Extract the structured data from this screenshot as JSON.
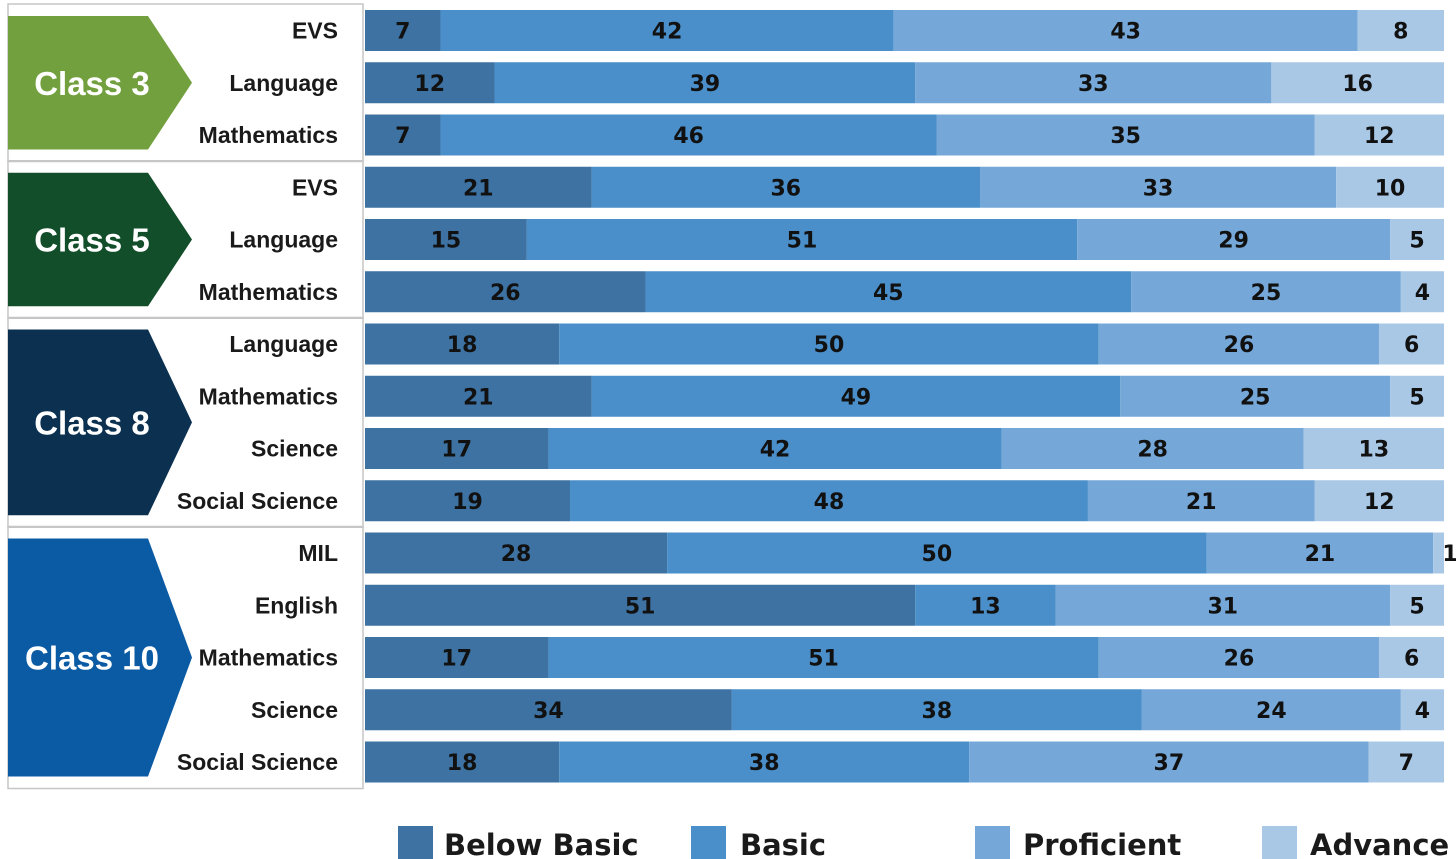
{
  "chart_data": {
    "type": "bar",
    "orientation": "horizontal",
    "stacked": true,
    "xlim": [
      0,
      100
    ],
    "series": [
      {
        "name": "Below Basic",
        "color": "#3d72a2"
      },
      {
        "name": "Basic",
        "color": "#4a8fc9"
      },
      {
        "name": "Proficient",
        "color": "#75a8d8"
      },
      {
        "name": "Advance",
        "color": "#a9c8e6"
      }
    ],
    "groups": [
      {
        "label": "Class 3",
        "color": "#73a03f",
        "rows": [
          {
            "subject": "EVS",
            "values": [
              7,
              42,
              43,
              8
            ]
          },
          {
            "subject": "Language",
            "values": [
              12,
              39,
              33,
              16
            ]
          },
          {
            "subject": "Mathematics",
            "values": [
              7,
              46,
              35,
              12
            ]
          }
        ]
      },
      {
        "label": "Class 5",
        "color": "#134e2a",
        "rows": [
          {
            "subject": "EVS",
            "values": [
              21,
              36,
              33,
              10
            ]
          },
          {
            "subject": "Language",
            "values": [
              15,
              51,
              29,
              5
            ]
          },
          {
            "subject": "Mathematics",
            "values": [
              26,
              45,
              25,
              4
            ]
          }
        ]
      },
      {
        "label": "Class 8",
        "color": "#0b3050",
        "rows": [
          {
            "subject": "Language",
            "values": [
              18,
              50,
              26,
              6
            ]
          },
          {
            "subject": "Mathematics",
            "values": [
              21,
              49,
              25,
              5
            ]
          },
          {
            "subject": "Science",
            "values": [
              17,
              42,
              28,
              13
            ]
          },
          {
            "subject": "Social Science",
            "values": [
              19,
              48,
              21,
              12
            ]
          }
        ]
      },
      {
        "label": "Class 10",
        "color": "#0b5aa4",
        "rows": [
          {
            "subject": "MIL",
            "values": [
              28,
              50,
              21,
              1
            ]
          },
          {
            "subject": "English",
            "values": [
              51,
              13,
              31,
              5
            ]
          },
          {
            "subject": "Mathematics",
            "values": [
              17,
              51,
              26,
              6
            ]
          },
          {
            "subject": "Science",
            "values": [
              34,
              38,
              24,
              4
            ]
          },
          {
            "subject": "Social Science",
            "values": [
              18,
              38,
              37,
              7
            ]
          }
        ]
      }
    ],
    "legend_position": "bottom"
  }
}
